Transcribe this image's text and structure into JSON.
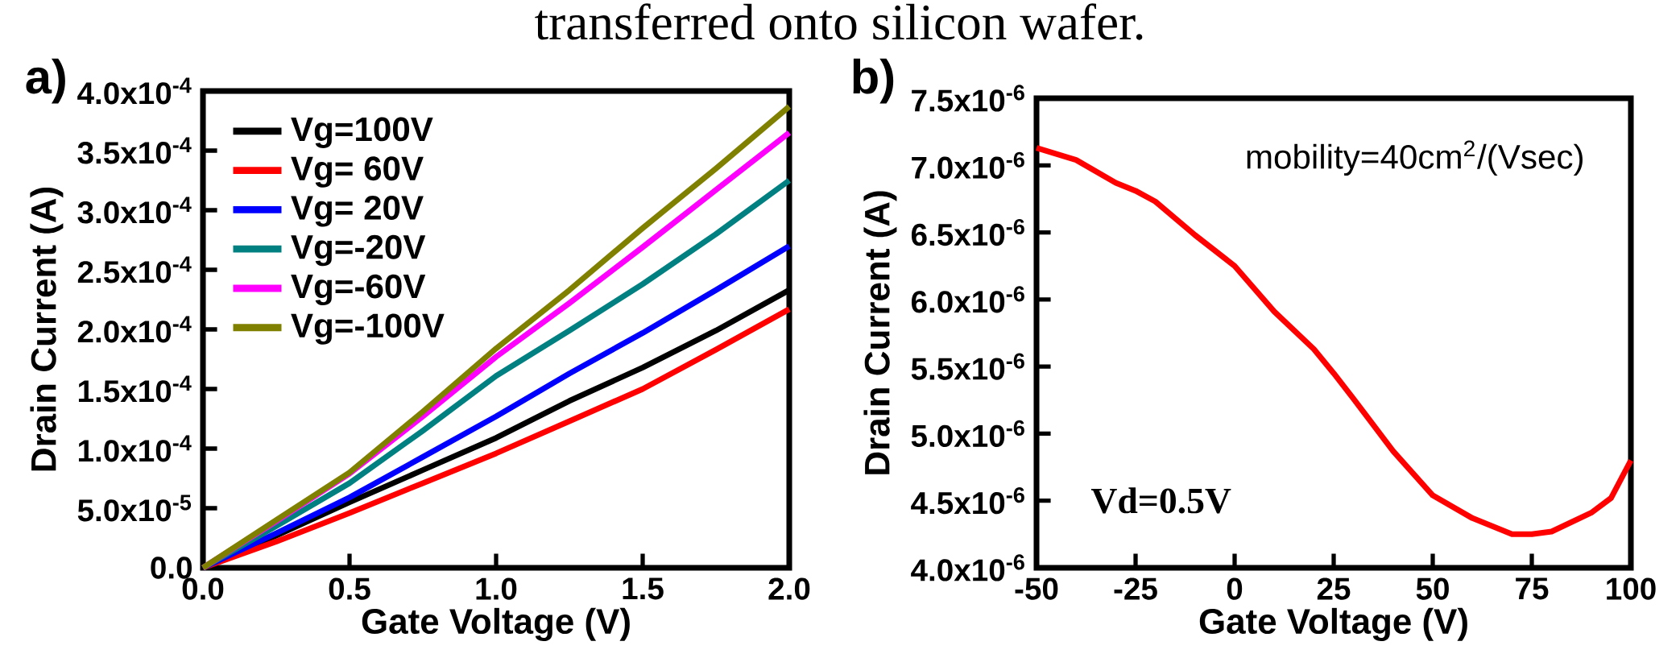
{
  "chart_data": [
    {
      "type": "line",
      "title": "a)",
      "xlabel": "Gate Voltage (V)",
      "ylabel": "Drain Current (A)",
      "annotations": [
        "transferred onto silicon wafer."
      ],
      "x": [
        0,
        0.25,
        0.5,
        0.75,
        1.0,
        1.25,
        1.5,
        1.75,
        2.0
      ],
      "series": [
        {
          "name": "Vg=100V",
          "color": "#000000",
          "values": [
            0,
            2.7e-05,
            5.5e-05,
            8.2e-05,
            0.000109,
            0.00014,
            0.000168,
            0.000199,
            0.000233
          ]
        },
        {
          "name": "Vg= 60V",
          "color": "#ff0000",
          "values": [
            0,
            2.2e-05,
            4.6e-05,
            7.1e-05,
            9.6e-05,
            0.000123,
            0.00015,
            0.000183,
            0.000217
          ]
        },
        {
          "name": "Vg= 20V",
          "color": "#0000ff",
          "values": [
            0,
            2.9e-05,
            5.9e-05,
            9.3e-05,
            0.000127,
            0.000163,
            0.000197,
            0.000233,
            0.00027
          ]
        },
        {
          "name": "Vg=-20V",
          "color": "#008080",
          "values": [
            0,
            3.5e-05,
            7.1e-05,
            0.000115,
            0.000161,
            0.000199,
            0.000238,
            0.00028,
            0.000325
          ]
        },
        {
          "name": "Vg=-60V",
          "color": "#ff00ff",
          "values": [
            0,
            3.9e-05,
            7.9e-05,
            0.000127,
            0.000177,
            0.000222,
            0.000269,
            0.000317,
            0.000365
          ]
        },
        {
          "name": "Vg=-100V",
          "color": "#808000",
          "values": [
            0,
            4e-05,
            8e-05,
            0.000131,
            0.000184,
            0.000233,
            0.000285,
            0.000335,
            0.000387
          ]
        }
      ],
      "xlim": [
        0,
        2.0
      ],
      "ylim": [
        0,
        0.0004
      ],
      "xticks": [
        {
          "value": 0,
          "label": "0.0"
        },
        {
          "value": 0.5,
          "label": "0.5"
        },
        {
          "value": 1.0,
          "label": "1.0"
        },
        {
          "value": 1.5,
          "label": "1.5"
        },
        {
          "value": 2.0,
          "label": "2.0"
        }
      ],
      "yticks": [
        {
          "value": 0,
          "label": "0.0"
        },
        {
          "value": 5e-05,
          "label": "5.0x10$^{-5}$"
        },
        {
          "value": 0.0001,
          "label": "1.0x10$^{-4}$"
        },
        {
          "value": 0.00015,
          "label": "1.5x10$^{-4}$"
        },
        {
          "value": 0.0002,
          "label": "2.0x10$^{-4}$"
        },
        {
          "value": 0.00025,
          "label": "2.5x10$^{-4}$"
        },
        {
          "value": 0.0003,
          "label": "3.0x10$^{-4}$"
        },
        {
          "value": 0.00035,
          "label": "3.5x10$^{-4}$"
        },
        {
          "value": 0.0004,
          "label": "4.0x10$^{-4}$"
        }
      ],
      "legend": "top left"
    },
    {
      "type": "line",
      "title": "b)",
      "xlabel": "Gate Voltage (V)",
      "ylabel": "Drain Current (A)",
      "annotations": [
        "mobility=40cm$^{2}$/(Vsec)",
        "Vd=0.5V"
      ],
      "x": [
        -50,
        -40,
        -30,
        -25,
        -20,
        -10,
        0,
        10,
        20,
        25,
        30,
        40,
        50,
        60,
        70,
        75,
        80,
        90,
        95,
        100
      ],
      "series": [
        {
          "color": "#ff0000",
          "values": [
            7.13e-06,
            7.04e-06,
            6.87e-06,
            6.81e-06,
            6.73e-06,
            6.48e-06,
            6.25e-06,
            5.91e-06,
            5.63e-06,
            5.45e-06,
            5.26e-06,
            4.87e-06,
            4.54e-06,
            4.37e-06,
            4.25e-06,
            4.25e-06,
            4.27e-06,
            4.41e-06,
            4.52e-06,
            4.8e-06
          ]
        }
      ],
      "xlim": [
        -50,
        100
      ],
      "ylim": [
        4e-06,
        7.5e-06
      ],
      "xticks": [
        -50,
        -25,
        0,
        25,
        50,
        75,
        100
      ],
      "yticks": [
        {
          "value": 4e-06,
          "label": "4.0x10$^{-6}$"
        },
        {
          "value": 4.5e-06,
          "label": "4.5x10$^{-6}$"
        },
        {
          "value": 5e-06,
          "label": "5.0x10$^{-6}$"
        },
        {
          "value": 5.5e-06,
          "label": "5.5x10$^{-6}$"
        },
        {
          "value": 6e-06,
          "label": "6.0x10$^{-6}$"
        },
        {
          "value": 6.5e-06,
          "label": "6.5x10$^{-6}$"
        },
        {
          "value": 7e-06,
          "label": "7.0x10$^{-6}$"
        },
        {
          "value": 7.5e-06,
          "label": "7.5x10$^{-6}$"
        }
      ]
    }
  ]
}
